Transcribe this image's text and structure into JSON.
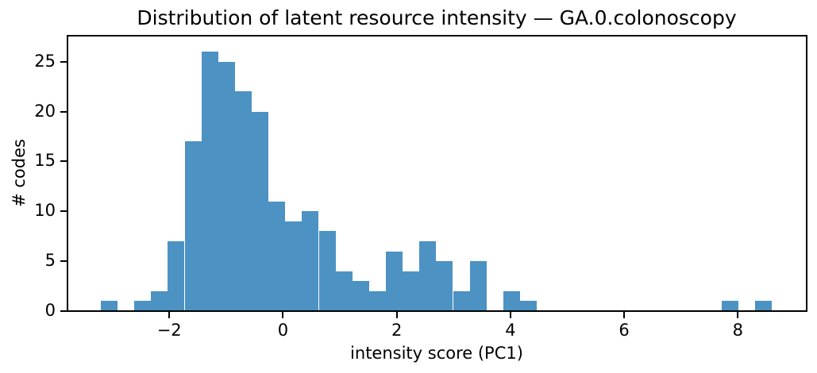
{
  "chart_data": {
    "type": "bar",
    "subtype": "histogram",
    "title": "Distribution of latent resource intensity — GA.0.colonoscopy",
    "xlabel": "intensity score (PC1)",
    "ylabel": "# codes",
    "bar_color": "#4c92c3",
    "axis_color": "#000000",
    "background_color": "#ffffff",
    "grid": "off",
    "legend": "none",
    "xlim": [
      -3.79,
      9.21
    ],
    "ylim": [
      0,
      27.6
    ],
    "xticks": [
      {
        "value": -2,
        "label": "−2"
      },
      {
        "value": 0,
        "label": "0"
      },
      {
        "value": 2,
        "label": "2"
      },
      {
        "value": 4,
        "label": "4"
      },
      {
        "value": 6,
        "label": "6"
      },
      {
        "value": 8,
        "label": "8"
      }
    ],
    "yticks": [
      {
        "value": 0,
        "label": "0"
      },
      {
        "value": 5,
        "label": "5"
      },
      {
        "value": 10,
        "label": "10"
      },
      {
        "value": 15,
        "label": "15"
      },
      {
        "value": 20,
        "label": "20"
      },
      {
        "value": 25,
        "label": "25"
      }
    ],
    "bins": {
      "start": -3.205,
      "width": 0.295,
      "count": 40
    },
    "counts": [
      1,
      0,
      1,
      2,
      7,
      17,
      26,
      25,
      22,
      20,
      11,
      9,
      10,
      8,
      4,
      3,
      2,
      6,
      4,
      7,
      5,
      2,
      5,
      0,
      2,
      1,
      0,
      0,
      0,
      0,
      0,
      0,
      0,
      0,
      0,
      0,
      0,
      1,
      0,
      1
    ],
    "total_codes": 202
  }
}
